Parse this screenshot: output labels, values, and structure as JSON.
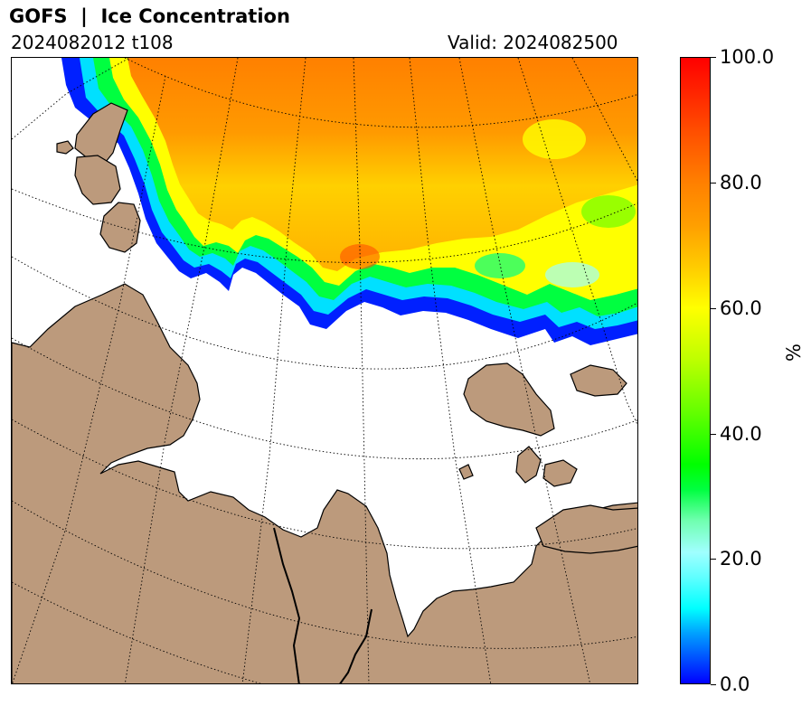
{
  "header": {
    "title": "GOFS  |  Ice Concentration",
    "run": "2024082012 t108",
    "valid": "Valid: 2024082500"
  },
  "map": {
    "land_color": "#bc9a7c",
    "ocean_color": "#ffffff",
    "coastline_color": "#000000",
    "graticule_style": "dotted",
    "ice_field": "sea ice concentration"
  },
  "colorbar": {
    "label": "%",
    "ticks": [
      "0.0",
      "20.0",
      "40.0",
      "60.0",
      "80.0",
      "100.0"
    ],
    "min": 0,
    "max": 100,
    "colors": [
      "#0000ff",
      "#00ffff",
      "#00ff00",
      "#ffff00",
      "#ff8000",
      "#ff0000"
    ]
  }
}
